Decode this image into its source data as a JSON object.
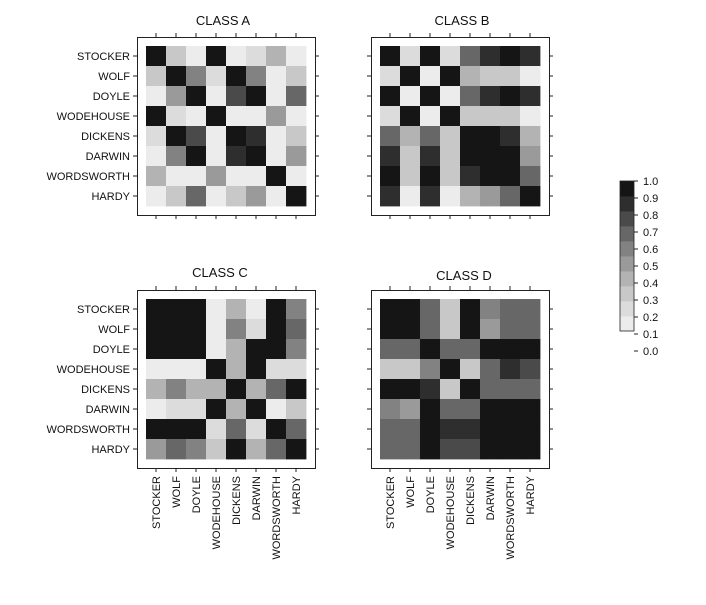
{
  "chart_data": [
    {
      "type": "heatmap",
      "title": "CLASS A",
      "labels": [
        "STOCKER",
        "WOLF",
        "DOYLE",
        "WODEHOUSE",
        "DICKENS",
        "DARWIN",
        "WORDSWORTH",
        "HARDY"
      ],
      "values": [
        [
          1.0,
          0.2,
          0.0,
          0.9,
          0.0,
          0.1,
          0.3,
          0.0
        ],
        [
          0.2,
          1.0,
          0.5,
          0.1,
          0.9,
          0.5,
          0.0,
          0.2
        ],
        [
          0.0,
          0.4,
          1.0,
          0.0,
          0.7,
          1.0,
          0.0,
          0.6
        ],
        [
          0.9,
          0.1,
          0.0,
          1.0,
          0.0,
          0.0,
          0.4,
          0.0
        ],
        [
          0.1,
          0.9,
          0.7,
          0.0,
          1.0,
          0.8,
          0.0,
          0.2
        ],
        [
          0.0,
          0.5,
          1.0,
          0.0,
          0.8,
          1.0,
          0.0,
          0.4
        ],
        [
          0.3,
          0.0,
          0.0,
          0.4,
          0.0,
          0.0,
          1.0,
          0.0
        ],
        [
          0.0,
          0.2,
          0.6,
          0.0,
          0.2,
          0.4,
          0.0,
          1.0
        ]
      ]
    },
    {
      "type": "heatmap",
      "title": "CLASS B",
      "labels": [
        "STOCKER",
        "WOLF",
        "DOYLE",
        "WODEHOUSE",
        "DICKENS",
        "DARWIN",
        "WORDSWORTH",
        "HARDY"
      ],
      "values": [
        [
          1.0,
          0.1,
          1.0,
          0.1,
          0.6,
          0.8,
          1.0,
          0.8
        ],
        [
          0.1,
          1.0,
          0.0,
          1.0,
          0.3,
          0.2,
          0.2,
          0.0
        ],
        [
          1.0,
          0.0,
          1.0,
          0.0,
          0.6,
          0.8,
          0.9,
          0.8
        ],
        [
          0.1,
          1.0,
          0.0,
          1.0,
          0.2,
          0.2,
          0.2,
          0.0
        ],
        [
          0.6,
          0.3,
          0.6,
          0.2,
          1.0,
          0.9,
          0.8,
          0.3
        ],
        [
          0.8,
          0.2,
          0.8,
          0.2,
          0.9,
          1.0,
          1.0,
          0.4
        ],
        [
          1.0,
          0.2,
          0.9,
          0.2,
          0.8,
          1.0,
          1.0,
          0.6
        ],
        [
          0.8,
          0.0,
          0.8,
          0.0,
          0.3,
          0.4,
          0.6,
          1.0
        ]
      ]
    },
    {
      "type": "heatmap",
      "title": "CLASS C",
      "labels": [
        "STOCKER",
        "WOLF",
        "DOYLE",
        "WODEHOUSE",
        "DICKENS",
        "DARWIN",
        "WORDSWORTH",
        "HARDY"
      ],
      "values": [
        [
          1.0,
          0.9,
          1.0,
          0.0,
          0.3,
          0.0,
          1.0,
          0.5
        ],
        [
          0.9,
          1.0,
          1.0,
          0.0,
          0.5,
          0.1,
          0.9,
          0.6
        ],
        [
          1.0,
          1.0,
          1.0,
          0.0,
          0.3,
          1.0,
          1.0,
          0.5
        ],
        [
          0.0,
          0.0,
          0.0,
          1.0,
          0.3,
          0.9,
          0.1,
          0.1
        ],
        [
          0.3,
          0.5,
          0.3,
          0.3,
          1.0,
          0.3,
          0.6,
          1.0
        ],
        [
          0.0,
          0.1,
          0.1,
          0.9,
          0.3,
          1.0,
          0.0,
          0.2
        ],
        [
          1.0,
          1.0,
          0.9,
          0.1,
          0.6,
          0.1,
          1.0,
          0.6
        ],
        [
          0.4,
          0.6,
          0.5,
          0.2,
          1.0,
          0.3,
          0.6,
          1.0
        ]
      ]
    },
    {
      "type": "heatmap",
      "title": "CLASS D",
      "labels": [
        "STOCKER",
        "WOLF",
        "DOYLE",
        "WODEHOUSE",
        "DICKENS",
        "DARWIN",
        "WORDSWORTH",
        "HARDY"
      ],
      "values": [
        [
          1.0,
          1.0,
          0.6,
          0.2,
          1.0,
          0.5,
          0.6,
          0.6
        ],
        [
          1.0,
          1.0,
          0.6,
          0.2,
          1.0,
          0.4,
          0.6,
          0.6
        ],
        [
          0.6,
          0.6,
          1.0,
          0.6,
          0.6,
          1.0,
          1.0,
          1.0
        ],
        [
          0.2,
          0.2,
          0.5,
          1.0,
          0.2,
          0.6,
          0.8,
          0.7
        ],
        [
          1.0,
          1.0,
          0.8,
          0.2,
          1.0,
          0.6,
          0.6,
          0.6
        ],
        [
          0.5,
          0.4,
          1.0,
          0.6,
          0.6,
          1.0,
          1.0,
          1.0
        ],
        [
          0.6,
          0.6,
          1.0,
          0.8,
          0.8,
          1.0,
          1.0,
          1.0
        ],
        [
          0.6,
          0.6,
          1.0,
          0.7,
          0.7,
          1.0,
          1.0,
          1.0
        ]
      ]
    }
  ],
  "colorbar": {
    "ticks": [
      "0.0",
      "0.1",
      "0.2",
      "0.3",
      "0.4",
      "0.5",
      "0.6",
      "0.7",
      "0.8",
      "0.9",
      "1.0"
    ],
    "range": [
      0,
      1
    ],
    "colormap": "greys",
    "levels": 10,
    "placement": "right"
  }
}
